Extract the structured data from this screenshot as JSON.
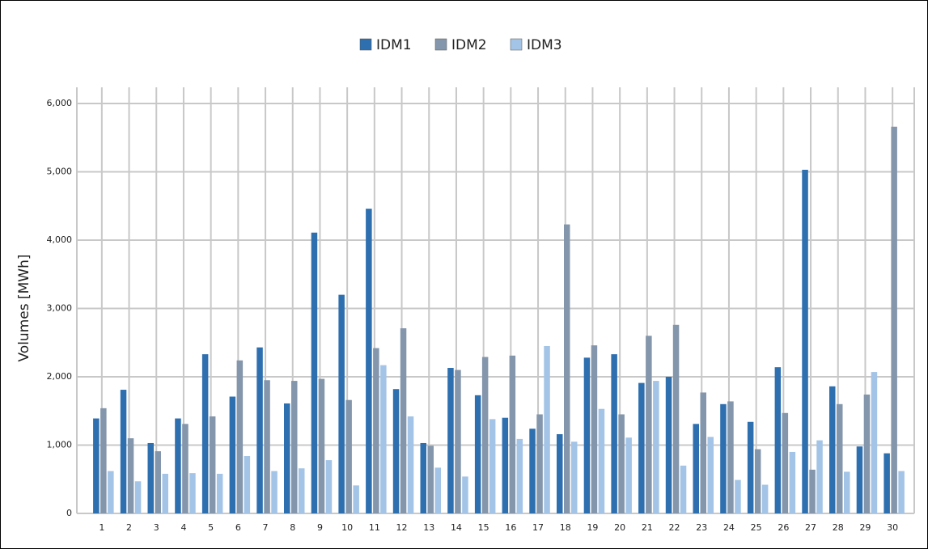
{
  "chart_data": {
    "type": "bar",
    "ylabel": "Volumes [MWh]",
    "categories": [
      "1",
      "2",
      "3",
      "4",
      "5",
      "6",
      "7",
      "8",
      "9",
      "10",
      "11",
      "12",
      "13",
      "14",
      "15",
      "16",
      "17",
      "18",
      "19",
      "20",
      "21",
      "22",
      "23",
      "24",
      "25",
      "26",
      "27",
      "28",
      "29",
      "30"
    ],
    "series": [
      {
        "name": "IDM1",
        "color": "#2e6fb0",
        "values": [
          1390,
          1810,
          1030,
          1390,
          2330,
          1710,
          2430,
          1610,
          4110,
          3200,
          4460,
          1820,
          1030,
          2130,
          1730,
          1400,
          1240,
          1160,
          2280,
          2330,
          1910,
          2000,
          1310,
          1600,
          1340,
          2140,
          5030,
          1860,
          980,
          880
        ]
      },
      {
        "name": "IDM2",
        "color": "#8496ab",
        "values": [
          1540,
          1100,
          910,
          1310,
          1420,
          2240,
          1950,
          1940,
          1970,
          1660,
          2420,
          2710,
          990,
          2100,
          2290,
          2310,
          1450,
          4230,
          2460,
          1450,
          2600,
          2760,
          1770,
          1640,
          940,
          1470,
          640,
          1600,
          1740,
          5660
        ]
      },
      {
        "name": "IDM3",
        "color": "#a3c4e6",
        "values": [
          620,
          470,
          580,
          590,
          580,
          840,
          620,
          660,
          780,
          410,
          2170,
          1420,
          670,
          540,
          1380,
          1090,
          2450,
          1050,
          1530,
          1110,
          1940,
          700,
          1120,
          490,
          420,
          900,
          1070,
          610,
          2070,
          620
        ]
      }
    ],
    "ylim": [
      0,
      6000
    ],
    "yticks": [
      0,
      {
        "value": 1000,
        "label": "1,000"
      },
      {
        "value": 2000,
        "label": "2,000"
      },
      {
        "value": 3000,
        "label": "3,000"
      },
      {
        "value": 4000,
        "label": "4,000"
      },
      {
        "value": 5000,
        "label": "5,000"
      },
      {
        "value": 6000,
        "label": "6,000"
      }
    ],
    "grid": true,
    "legend": "top"
  }
}
